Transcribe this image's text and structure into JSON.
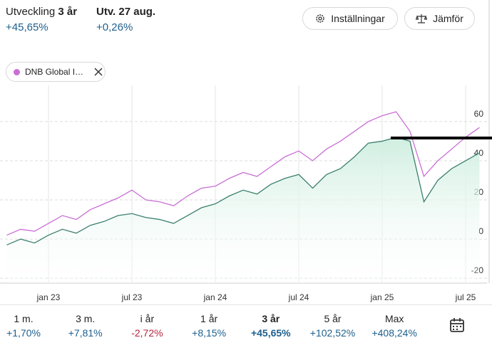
{
  "header": {
    "development_label": "Utveckling",
    "development_period": "3 år",
    "development_value": "+45,65%",
    "day_label": "Utv. 27 aug.",
    "day_value": "+0,26%"
  },
  "buttons": [
    "Inställningar",
    "Jämför"
  ],
  "chart_data": {
    "type": "line",
    "categories": [
      null,
      null,
      null,
      "jan 23",
      null,
      null,
      null,
      null,
      null,
      "jul 23",
      null,
      null,
      null,
      null,
      null,
      "jan 24",
      null,
      null,
      null,
      null,
      null,
      "jul 24",
      null,
      null,
      null,
      null,
      null,
      "jan 25",
      null,
      null,
      null,
      null,
      null,
      "jul 25",
      null
    ],
    "series": [
      {
        "color": "#3b7f6f",
        "area": true,
        "values": [
          -3,
          0,
          -2,
          2,
          5,
          3,
          7,
          9,
          12,
          13,
          11,
          10,
          8,
          12,
          16,
          18,
          22,
          25,
          23,
          28,
          31,
          33,
          26,
          33,
          36,
          42,
          49,
          50,
          52,
          50,
          19,
          30,
          36,
          40,
          44
        ]
      },
      {
        "name": "DNB Global I…",
        "color": "#c96fd4",
        "values": [
          2,
          5,
          4,
          8,
          12,
          10,
          15,
          18,
          21,
          25,
          20,
          19,
          17,
          22,
          26,
          27,
          31,
          34,
          32,
          37,
          42,
          45,
          40,
          46,
          50,
          55,
          60,
          63,
          65,
          55,
          32,
          40,
          46,
          52,
          57
        ]
      }
    ],
    "ylim": [
      -22.5,
      78.5
    ],
    "yticks": [
      -20,
      0,
      20,
      40,
      60
    ],
    "grid": true
  },
  "periods": [
    {
      "label": "1 m.",
      "change": "+1,70%",
      "color": "#1d5f8c"
    },
    {
      "label": "3 m.",
      "change": "+7,81%",
      "color": "#1d5f8c"
    },
    {
      "label": "i år",
      "change": "-2,72%",
      "color": "#b3283f"
    },
    {
      "label": "1 år",
      "change": "+8,15%",
      "color": "#1d5f8c"
    },
    {
      "label": "3 år",
      "change": "+45,65%",
      "color": "#1d5f8c",
      "selected": true
    },
    {
      "label": "5 år",
      "change": "+102,52%",
      "color": "#1d5f8c"
    },
    {
      "label": "Max",
      "change": "+408,24%",
      "color": "#1d5f8c"
    }
  ]
}
